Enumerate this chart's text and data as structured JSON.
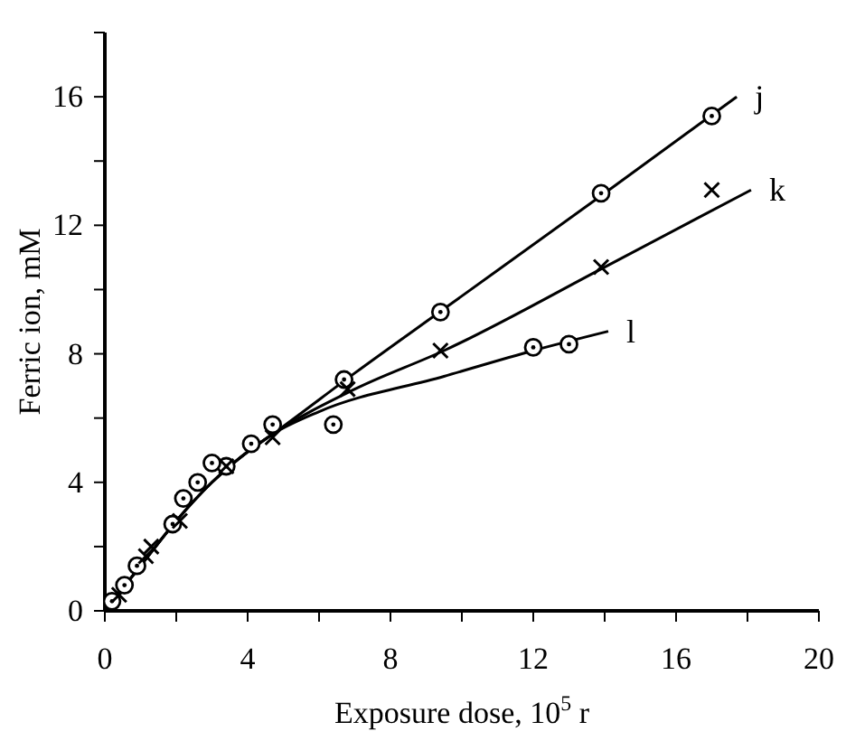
{
  "chart_data": {
    "type": "scatter",
    "xlabel": "Exposure dose, 10$^{5}$ r",
    "ylabel": "Ferric ion, mM",
    "xlim": [
      0,
      20
    ],
    "ylim": [
      0,
      18
    ],
    "xticks": [
      0,
      {
        "value": 2,
        "label": null
      },
      4,
      {
        "value": 6,
        "label": null
      },
      8,
      {
        "value": 10,
        "label": null
      },
      12,
      {
        "value": 14,
        "label": null
      },
      16,
      {
        "value": 18,
        "label": null
      },
      20
    ],
    "yticks": [
      0,
      {
        "value": 2,
        "label": null
      },
      4,
      {
        "value": 6,
        "label": null
      },
      8,
      {
        "value": 10,
        "label": null
      },
      12,
      {
        "value": 14,
        "label": null
      },
      16,
      {
        "value": 18,
        "label": null
      }
    ],
    "grid": false,
    "legend": false,
    "color": "#000000",
    "series": [
      {
        "marker": "circle",
        "color": "#000000",
        "x": [
          0.2,
          0.9,
          1.9,
          2.6,
          3.4,
          4.7,
          6.7,
          9.4,
          13.9,
          17.0
        ],
        "values": [
          0.3,
          1.4,
          2.7,
          4.0,
          4.5,
          5.8,
          7.2,
          9.3,
          13.0,
          15.4
        ]
      },
      {
        "marker": "cross",
        "color": "#000000",
        "x": [
          0.4,
          1.15,
          1.3,
          2.1,
          3.4,
          4.7,
          6.8,
          9.4,
          13.9,
          17.0
        ],
        "values": [
          0.5,
          1.7,
          2.0,
          2.8,
          4.5,
          5.4,
          6.9,
          8.1,
          10.7,
          13.1
        ]
      },
      {
        "marker": "circle",
        "color": "#000000",
        "x": [
          0.55,
          2.2,
          3.0,
          4.1,
          6.4,
          12.0,
          13.0
        ],
        "values": [
          0.8,
          3.5,
          4.6,
          5.2,
          5.8,
          8.2,
          8.3
        ]
      },
      {
        "type": "line",
        "name": "j",
        "marker": "none",
        "color": "#000000",
        "x": [
          0,
          1,
          2,
          3,
          4,
          4.7,
          7,
          9.5,
          14,
          17.7
        ],
        "values": [
          0,
          1.4,
          2.8,
          4.0,
          4.95,
          5.5,
          7.4,
          9.4,
          13.0,
          16.0
        ]
      },
      {
        "type": "line",
        "name": "k",
        "marker": "none",
        "color": "#000000",
        "x": [
          0,
          1,
          2,
          3,
          4,
          4.7,
          7,
          9.5,
          14,
          18.1
        ],
        "values": [
          0,
          1.4,
          2.8,
          4.0,
          4.95,
          5.5,
          6.9,
          8.1,
          10.7,
          13.1
        ]
      },
      {
        "type": "line",
        "name": "l",
        "marker": "none",
        "color": "#000000",
        "x": [
          0,
          1,
          2,
          3,
          4,
          4.7,
          6,
          9.5,
          12,
          14.1
        ],
        "values": [
          0,
          1.4,
          2.8,
          4.0,
          4.95,
          5.5,
          6.2,
          7.3,
          8.1,
          8.7
        ]
      }
    ]
  }
}
